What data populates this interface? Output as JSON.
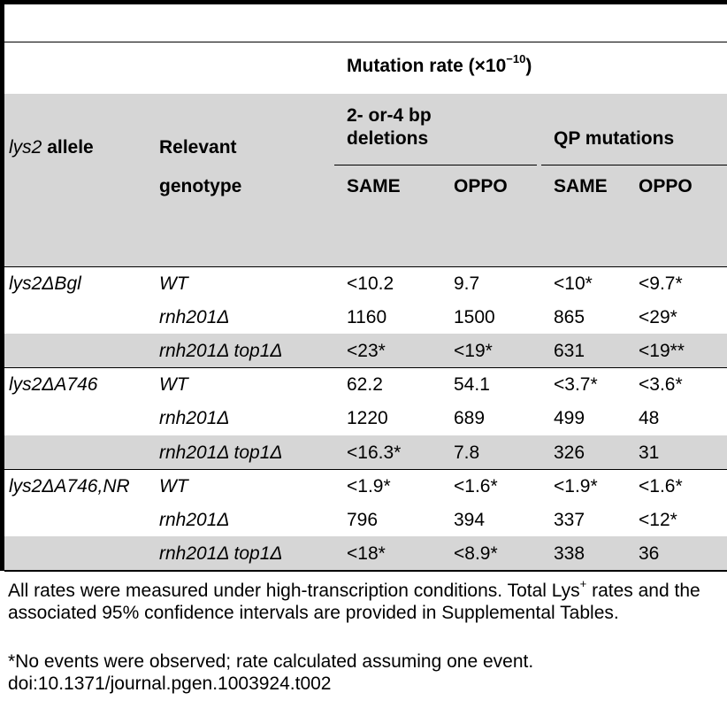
{
  "table": {
    "header": {
      "mutation_rate": "Mutation rate (×10",
      "mutation_rate_exp": "−10",
      "mutation_rate_close": ")",
      "deletions_line1": "2- or-4 bp",
      "deletions_line2": "deletions",
      "qp_mutations": "QP mutations",
      "allele_italic": "lys2",
      "allele_rest": " allele",
      "relevant": "Relevant",
      "genotype": "genotype",
      "same1": "SAME",
      "oppo1": "OPPO",
      "same2": "SAME",
      "oppo2": "OPPO"
    },
    "rows": [
      {
        "allele": "lys2ΔBgl",
        "genotype": "WT",
        "del_same": "<10.2",
        "del_oppo": "9.7",
        "qp_same": "<10*",
        "qp_oppo": "<9.7*"
      },
      {
        "allele": "",
        "genotype": "rnh201Δ",
        "del_same": "1160",
        "del_oppo": "1500",
        "qp_same": "865",
        "qp_oppo": "<29*"
      },
      {
        "allele": "",
        "genotype": "rnh201Δ top1Δ",
        "del_same": "<23*",
        "del_oppo": "<19*",
        "qp_same": "631",
        "qp_oppo": "<19**"
      },
      {
        "allele": "lys2ΔA746",
        "genotype": "WT",
        "del_same": "62.2",
        "del_oppo": "54.1",
        "qp_same": "<3.7*",
        "qp_oppo": "<3.6*"
      },
      {
        "allele": "",
        "genotype": "rnh201Δ",
        "del_same": "1220",
        "del_oppo": "689",
        "qp_same": "499",
        "qp_oppo": "48"
      },
      {
        "allele": "",
        "genotype": "rnh201Δ top1Δ",
        "del_same": "<16.3*",
        "del_oppo": "7.8",
        "qp_same": "326",
        "qp_oppo": "31"
      },
      {
        "allele": "lys2ΔA746,NR",
        "genotype": "WT",
        "del_same": "<1.9*",
        "del_oppo": "<1.6*",
        "qp_same": "<1.9*",
        "qp_oppo": "<1.6*"
      },
      {
        "allele": "",
        "genotype": "rnh201Δ",
        "del_same": "796",
        "del_oppo": "394",
        "qp_same": "337",
        "qp_oppo": "<12*"
      },
      {
        "allele": "",
        "genotype": "rnh201Δ top1Δ",
        "del_same": "<18*",
        "del_oppo": "<8.9*",
        "qp_same": "338",
        "qp_oppo": "36"
      }
    ]
  },
  "footnotes": {
    "note1_a": "All rates were measured under high-transcription conditions. Total Lys",
    "note1_sup": "+",
    "note1_b": " rates and the associated 95% confidence intervals are provided in Supplemental Tables.",
    "note2": "*No events were observed; rate calculated assuming one event.",
    "doi": "doi:10.1371/journal.pgen.1003924.t002"
  }
}
